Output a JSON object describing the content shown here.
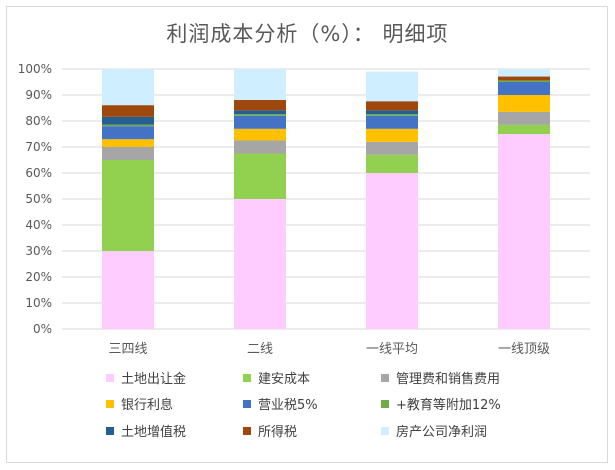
{
  "chart_data": {
    "type": "bar",
    "stacked": true,
    "title": "利润成本分析（%）： 明细项",
    "xlabel": "",
    "ylabel": "",
    "ylim": [
      0,
      100
    ],
    "yticks": [
      "0%",
      "10%",
      "20%",
      "30%",
      "40%",
      "50%",
      "60%",
      "70%",
      "80%",
      "90%",
      "100%"
    ],
    "categories": [
      "三四线",
      "二线",
      "一线平均",
      "一线顶级"
    ],
    "legend_position": "bottom",
    "series": [
      {
        "name": "土地出让金",
        "color": "#ffccff",
        "values": [
          30,
          50,
          60,
          75
        ]
      },
      {
        "name": "建安成本",
        "color": "#92d050",
        "values": [
          35,
          17.5,
          7,
          3.5
        ]
      },
      {
        "name": "管理费和销售费用",
        "color": "#a6a6a6",
        "values": [
          5,
          5,
          5,
          5
        ]
      },
      {
        "name": "银行利息",
        "color": "#ffc000",
        "values": [
          3,
          4.5,
          5,
          6.5
        ]
      },
      {
        "name": "营业税5%",
        "color": "#4472c4",
        "values": [
          5,
          5,
          5,
          5
        ]
      },
      {
        "name": "+教育等附加12%",
        "color": "#70ad47",
        "values": [
          0.6,
          0.6,
          0.6,
          0.6
        ]
      },
      {
        "name": "土地增值税",
        "color": "#255e91",
        "values": [
          3,
          1.5,
          1.5,
          0
        ]
      },
      {
        "name": "所得税",
        "color": "#9e480e",
        "values": [
          4.5,
          4,
          3.5,
          1.5
        ]
      },
      {
        "name": "房产公司净利润",
        "color": "#cfeeff",
        "values": [
          13.9,
          11.9,
          11.4,
          2.9
        ]
      }
    ]
  }
}
